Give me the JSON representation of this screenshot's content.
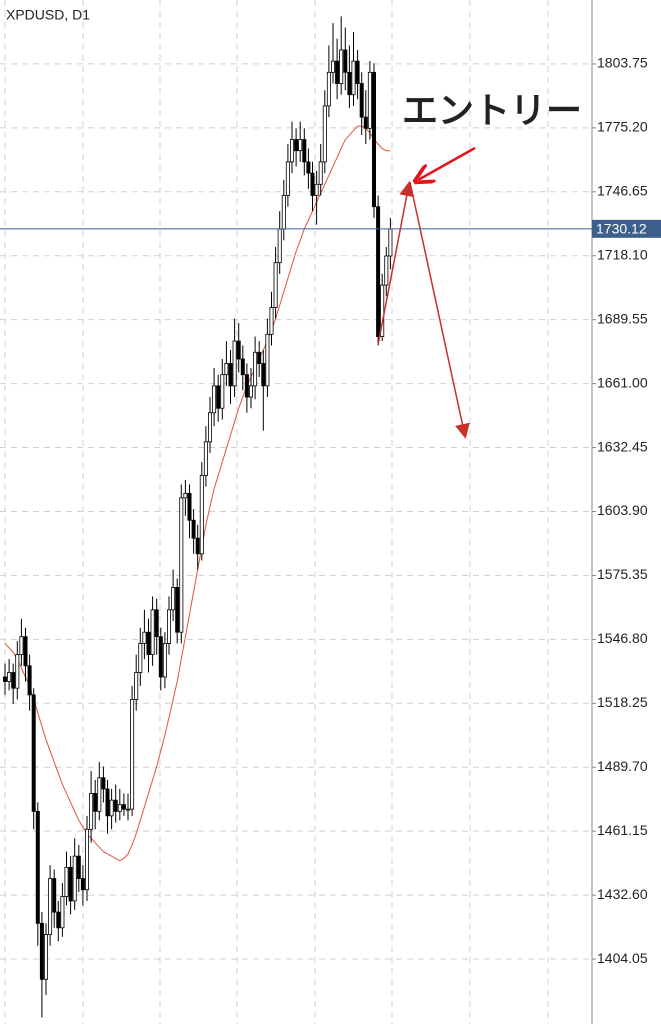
{
  "chart_data": {
    "type": "candlestick",
    "title": "XPDUSD, D1",
    "ylim": [
      1375.05,
      1832.3
    ],
    "yticks": [
      1404.05,
      {
        "value": 1432.6,
        "label": "1432.60"
      },
      1461.15,
      {
        "value": 1489.7,
        "label": "1489.70"
      },
      1518.25,
      {
        "value": 1546.8,
        "label": "1546.80"
      },
      1575.35,
      {
        "value": 1603.9,
        "label": "1603.90"
      },
      1632.45,
      {
        "value": 1661,
        "label": "1661.00"
      },
      1689.55,
      {
        "value": 1718.1,
        "label": "1718.10"
      },
      1746.65,
      {
        "value": 1775.2,
        "label": "1775.20"
      },
      1803.75
    ],
    "grid": true,
    "current_price": 1730.12,
    "current_price_color": "#3d5f8c",
    "annotation": "エントリー",
    "annotation_color": "#e8141c",
    "open": [
      1530,
      1528,
      1532,
      1525,
      1540,
      1548,
      1535,
      1522,
      1470,
      1420,
      1395,
      1415,
      1440,
      1425,
      1418,
      1432,
      1445,
      1430,
      1450,
      1440,
      1435,
      1462,
      1478,
      1470,
      1485,
      1480,
      1468,
      1475,
      1470,
      1473,
      1471,
      1471,
      1520,
      1532,
      1545,
      1550,
      1540,
      1560,
      1548,
      1530,
      1545,
      1560,
      1570,
      1550,
      1610,
      1612,
      1600,
      1592,
      1585,
      1620,
      1635,
      1648,
      1660,
      1650,
      1665,
      1670,
      1660,
      1680,
      1672,
      1665,
      1655,
      1660,
      1675,
      1670,
      1660,
      1683,
      1695,
      1715,
      1730,
      1745,
      1760,
      1770,
      1765,
      1770,
      1760,
      1755,
      1745,
      1750,
      1760,
      1785,
      1800,
      1805,
      1795,
      1810,
      1800,
      1790,
      1805,
      1795,
      1780,
      1775,
      1800,
      1740,
      1682,
      1705,
      1718
    ],
    "high": [
      1536,
      1538,
      1536,
      1546,
      1556,
      1552,
      1540,
      1525,
      1474,
      1425,
      1420,
      1446,
      1444,
      1430,
      1438,
      1452,
      1450,
      1458,
      1455,
      1446,
      1468,
      1488,
      1484,
      1492,
      1490,
      1484,
      1480,
      1482,
      1480,
      1478,
      1478,
      1526,
      1540,
      1552,
      1560,
      1556,
      1566,
      1565,
      1552,
      1550,
      1566,
      1578,
      1574,
      1616,
      1618,
      1616,
      1605,
      1598,
      1626,
      1642,
      1655,
      1668,
      1665,
      1672,
      1680,
      1676,
      1690,
      1688,
      1678,
      1670,
      1668,
      1682,
      1680,
      1676,
      1690,
      1702,
      1722,
      1738,
      1752,
      1768,
      1778,
      1775,
      1778,
      1775,
      1766,
      1760,
      1756,
      1768,
      1792,
      1812,
      1822,
      1815,
      1825,
      1820,
      1812,
      1818,
      1810,
      1800,
      1792,
      1805,
      1804,
      1745,
      1710,
      1722,
      1735
    ],
    "low": [
      1522,
      1524,
      1518,
      1520,
      1535,
      1528,
      1515,
      1462,
      1410,
      1378,
      1388,
      1410,
      1418,
      1412,
      1414,
      1428,
      1424,
      1426,
      1434,
      1428,
      1430,
      1456,
      1462,
      1466,
      1474,
      1460,
      1462,
      1465,
      1466,
      1468,
      1466,
      1468,
      1515,
      1526,
      1538,
      1532,
      1535,
      1540,
      1524,
      1525,
      1540,
      1555,
      1545,
      1545,
      1602,
      1592,
      1585,
      1578,
      1582,
      1615,
      1630,
      1642,
      1644,
      1645,
      1660,
      1652,
      1655,
      1666,
      1658,
      1648,
      1650,
      1654,
      1664,
      1640,
      1655,
      1678,
      1690,
      1710,
      1725,
      1740,
      1755,
      1758,
      1760,
      1754,
      1748,
      1738,
      1732,
      1745,
      1755,
      1780,
      1795,
      1788,
      1790,
      1792,
      1784,
      1785,
      1788,
      1772,
      1768,
      1770,
      1735,
      1678,
      1680,
      1700,
      1712
    ],
    "close": [
      1528,
      1532,
      1525,
      1540,
      1548,
      1535,
      1522,
      1470,
      1420,
      1395,
      1415,
      1440,
      1425,
      1418,
      1432,
      1445,
      1430,
      1450,
      1440,
      1435,
      1462,
      1478,
      1470,
      1485,
      1480,
      1468,
      1475,
      1470,
      1473,
      1471,
      1471,
      1520,
      1532,
      1545,
      1550,
      1540,
      1560,
      1548,
      1530,
      1545,
      1560,
      1570,
      1550,
      1610,
      1612,
      1600,
      1592,
      1585,
      1620,
      1635,
      1648,
      1660,
      1650,
      1665,
      1670,
      1660,
      1680,
      1672,
      1665,
      1655,
      1660,
      1675,
      1670,
      1660,
      1683,
      1695,
      1715,
      1730,
      1745,
      1760,
      1770,
      1765,
      1770,
      1760,
      1755,
      1745,
      1750,
      1760,
      1785,
      1800,
      1805,
      1795,
      1810,
      1800,
      1790,
      1805,
      1795,
      1780,
      1775,
      1800,
      1740,
      1682,
      1705,
      1718,
      1730
    ],
    "ma": {
      "color": "#e0543f",
      "values": [
        1545,
        1543,
        1541,
        1538,
        1534,
        1530,
        1526,
        1520,
        1514,
        1508,
        1502,
        1497,
        1492,
        1487,
        1482,
        1478,
        1474,
        1470,
        1466,
        1463,
        1460,
        1458,
        1456,
        1454,
        1452,
        1451,
        1450,
        1449,
        1448,
        1449,
        1451,
        1455,
        1460,
        1466,
        1472,
        1478,
        1484,
        1490,
        1497,
        1504,
        1512,
        1520,
        1528,
        1538,
        1548,
        1558,
        1568,
        1578,
        1588,
        1598,
        1606,
        1614,
        1620,
        1626,
        1632,
        1638,
        1644,
        1650,
        1655,
        1660,
        1664,
        1668,
        1672,
        1676,
        1680,
        1685,
        1690,
        1696,
        1702,
        1708,
        1714,
        1720,
        1725,
        1730,
        1734,
        1738,
        1742,
        1746,
        1750,
        1754,
        1758,
        1762,
        1766,
        1770,
        1772,
        1774,
        1776,
        1776,
        1775,
        1773,
        1770,
        1768,
        1766,
        1765,
        1765
      ]
    }
  }
}
